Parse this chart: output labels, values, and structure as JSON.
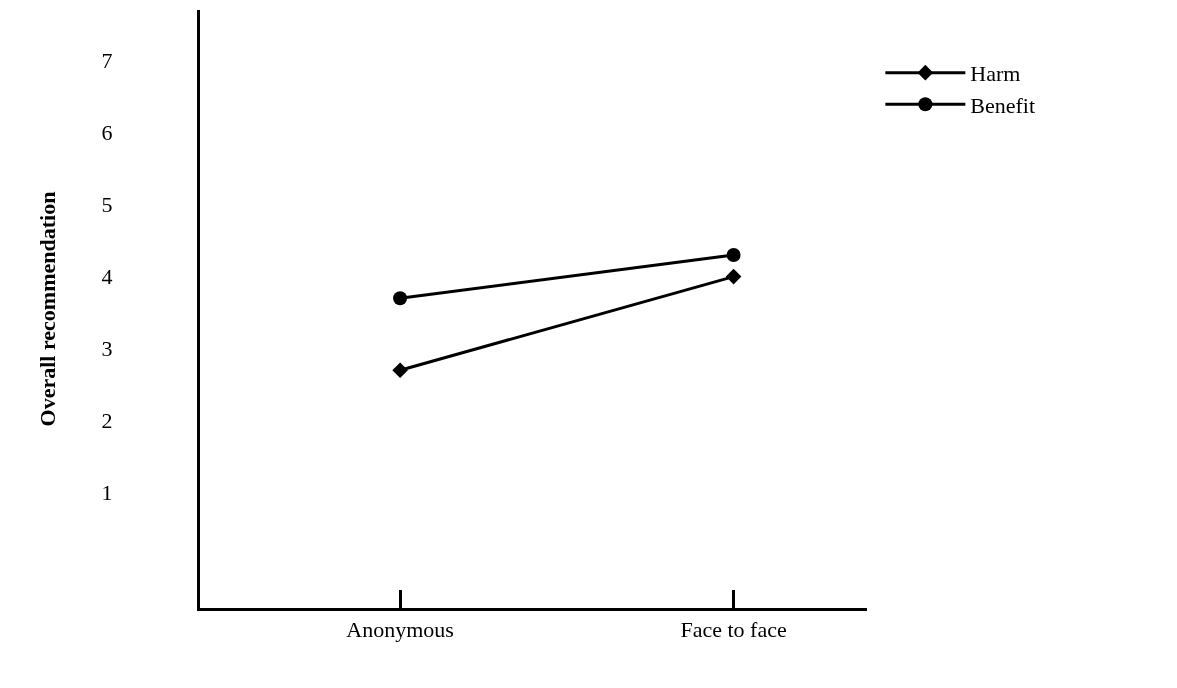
{
  "chart_data": {
    "type": "line",
    "ylabel": "Overall recommendation",
    "categories": [
      "Anonymous",
      "Face to face"
    ],
    "series": [
      {
        "name": "Harm",
        "color": "#000000",
        "values": [
          2.7,
          4.0
        ],
        "marker": "diamond"
      },
      {
        "name": "Benefit",
        "color": "#000000",
        "values": [
          3.7,
          4.3
        ],
        "marker": "circle"
      }
    ],
    "ylim": [
      -0.6,
      7.7
    ],
    "yticks": [
      1,
      2,
      3,
      4,
      5,
      6,
      7
    ],
    "legend": "top right",
    "line_style": "solid"
  }
}
